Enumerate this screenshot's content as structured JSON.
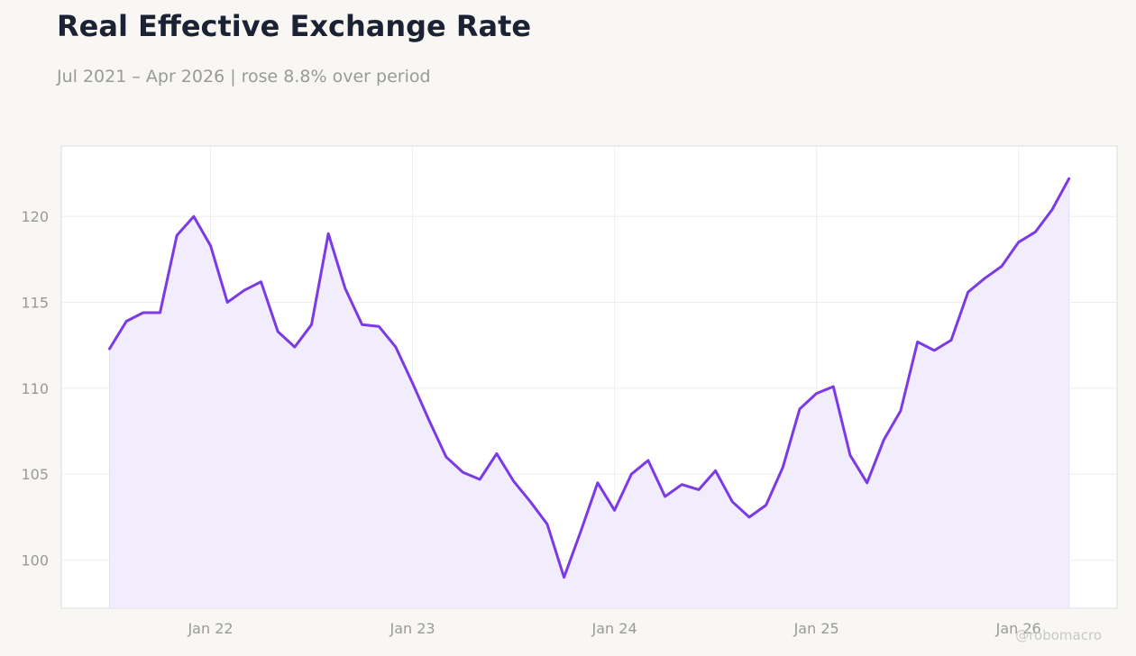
{
  "title": "Real Effective Exchange Rate",
  "subtitle": "Jul 2021 – Apr 2026 | rose 8.8% over period",
  "watermark": "@robomacro",
  "colors": {
    "line": "#7b3ae6",
    "fill": "#f1edfc",
    "background": "#f8f7f4",
    "plot_background": "#ffffff"
  },
  "chart_data": {
    "type": "area",
    "title": "Real Effective Exchange Rate",
    "subtitle": "Jul 2021 – Apr 2026 | rose 8.8% over period",
    "xlabel": "",
    "ylabel": "",
    "x_range": [
      "2021-07",
      "2026-04"
    ],
    "ylim": [
      97.2,
      124.1
    ],
    "grid": true,
    "x_ticks": [
      "Jan 22",
      "Jan 23",
      "Jan 24",
      "Jan 25",
      "Jan 26"
    ],
    "y_ticks": [
      100,
      105,
      110,
      115,
      120
    ],
    "x": [
      "2021-07",
      "2021-08",
      "2021-09",
      "2021-10",
      "2021-11",
      "2021-12",
      "2022-01",
      "2022-02",
      "2022-03",
      "2022-04",
      "2022-05",
      "2022-06",
      "2022-07",
      "2022-08",
      "2022-09",
      "2022-10",
      "2022-11",
      "2022-12",
      "2023-01",
      "2023-02",
      "2023-03",
      "2023-04",
      "2023-05",
      "2023-06",
      "2023-07",
      "2023-08",
      "2023-09",
      "2023-10",
      "2023-11",
      "2023-12",
      "2024-01",
      "2024-02",
      "2024-03",
      "2024-04",
      "2024-05",
      "2024-06",
      "2024-07",
      "2024-08",
      "2024-09",
      "2024-10",
      "2024-11",
      "2024-12",
      "2025-01",
      "2025-02",
      "2025-03",
      "2025-04",
      "2025-05",
      "2025-06",
      "2025-07",
      "2025-08",
      "2025-09",
      "2025-10",
      "2025-11",
      "2025-12",
      "2026-01",
      "2026-02",
      "2026-03",
      "2026-04"
    ],
    "values": [
      112.3,
      113.9,
      114.4,
      114.4,
      118.9,
      120.0,
      118.3,
      115.0,
      115.7,
      116.2,
      113.3,
      112.4,
      113.7,
      119.0,
      115.8,
      113.7,
      113.6,
      112.4,
      110.3,
      108.1,
      106.0,
      105.1,
      104.7,
      106.2,
      104.6,
      103.4,
      102.1,
      99.0,
      101.7,
      104.5,
      102.9,
      105.0,
      105.8,
      103.7,
      104.4,
      104.1,
      105.2,
      103.4,
      102.5,
      103.2,
      105.4,
      108.8,
      109.7,
      110.1,
      106.1,
      104.5,
      107.0,
      108.7,
      112.7,
      112.2,
      112.8,
      115.6,
      116.4,
      117.1,
      118.5,
      119.1,
      120.4,
      122.2
    ]
  }
}
